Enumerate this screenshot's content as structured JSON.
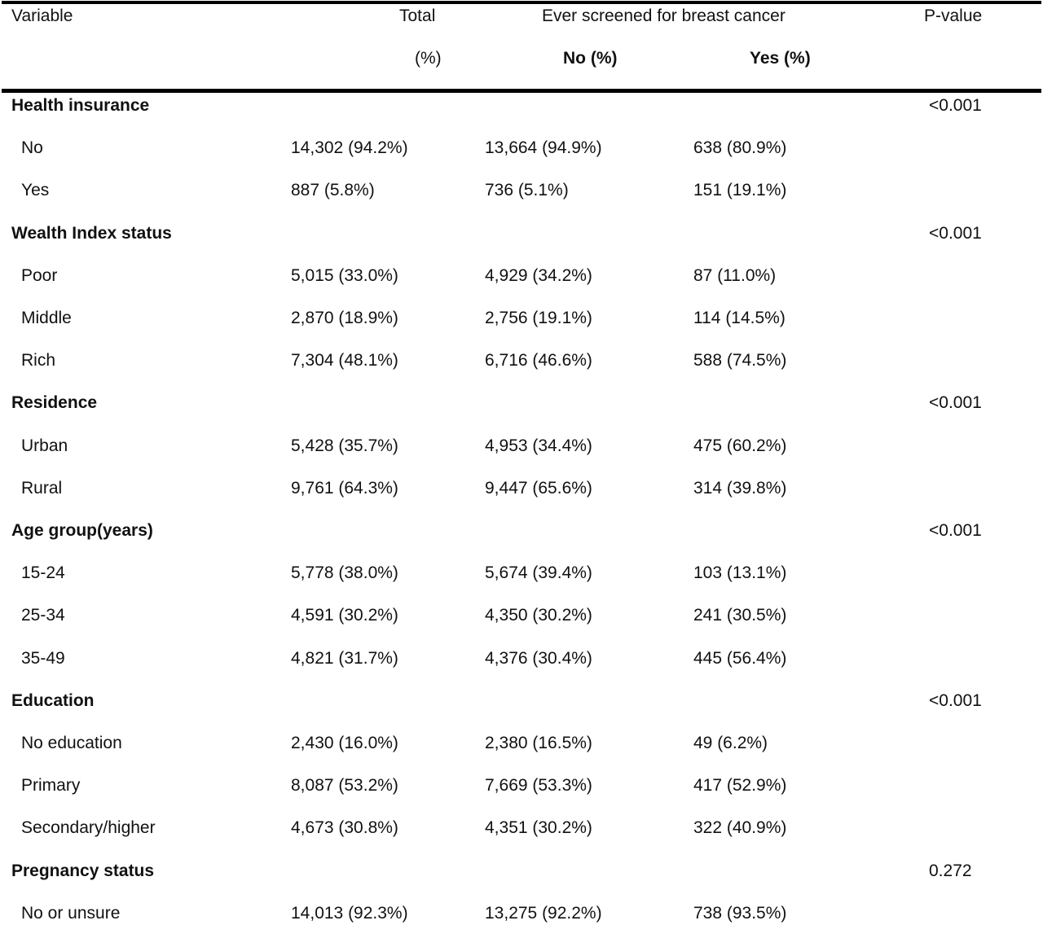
{
  "header": {
    "variable": "Variable",
    "total": "Total",
    "total_unit": "(%)",
    "group": "Ever screened for breast cancer",
    "no": "No (%)",
    "yes": "Yes (%)",
    "pvalue": "P-value"
  },
  "rows": [
    {
      "type": "section",
      "label": "Health insurance",
      "p": "<0.001"
    },
    {
      "type": "item",
      "label": "No",
      "total": "14,302 (94.2%)",
      "no": "13,664 (94.9%)",
      "yes": "638 (80.9%)"
    },
    {
      "type": "item",
      "label": "Yes",
      "total": "887 (5.8%)",
      "no": "736 (5.1%)",
      "yes": "151 (19.1%)"
    },
    {
      "type": "section",
      "label": "Wealth Index status",
      "p": "<0.001"
    },
    {
      "type": "item",
      "label": "Poor",
      "total": "5,015 (33.0%)",
      "no": "4,929 (34.2%)",
      "yes": "87 (11.0%)"
    },
    {
      "type": "item",
      "label": "Middle",
      "total": "2,870 (18.9%)",
      "no": "2,756 (19.1%)",
      "yes": "114 (14.5%)"
    },
    {
      "type": "item",
      "label": "Rich",
      "total": "7,304 (48.1%)",
      "no": "6,716 (46.6%)",
      "yes": "588 (74.5%)"
    },
    {
      "type": "section",
      "label": "Residence",
      "p": "<0.001"
    },
    {
      "type": "item",
      "label": "Urban",
      "total": "5,428 (35.7%)",
      "no": "4,953 (34.4%)",
      "yes": "475 (60.2%)"
    },
    {
      "type": "item",
      "label": "Rural",
      "total": "9,761 (64.3%)",
      "no": "9,447 (65.6%)",
      "yes": "314 (39.8%)"
    },
    {
      "type": "section",
      "label": "Age group(years)",
      "p": "<0.001"
    },
    {
      "type": "item",
      "label": "15-24",
      "total": "5,778 (38.0%)",
      "no": "5,674 (39.4%)",
      "yes": "103 (13.1%)"
    },
    {
      "type": "item",
      "label": "25-34",
      "total": "4,591 (30.2%)",
      "no": "4,350 (30.2%)",
      "yes": "241 (30.5%)"
    },
    {
      "type": "item",
      "label": "35-49",
      "total": "4,821 (31.7%)",
      "no": "4,376 (30.4%)",
      "yes": "445 (56.4%)"
    },
    {
      "type": "section",
      "label": "Education",
      "p": "<0.001"
    },
    {
      "type": "item",
      "label": "No education",
      "total": "2,430 (16.0%)",
      "no": "2,380 (16.5%)",
      "yes": "49 (6.2%)"
    },
    {
      "type": "item",
      "label": "Primary",
      "total": "8,087 (53.2%)",
      "no": "7,669 (53.3%)",
      "yes": "417 (52.9%)"
    },
    {
      "type": "item",
      "label": "Secondary/higher",
      "total": "4,673 (30.8%)",
      "no": "4,351 (30.2%)",
      "yes": "322 (40.9%)"
    },
    {
      "type": "section",
      "label": "Pregnancy status",
      "p": "0.272"
    },
    {
      "type": "item",
      "label": "No or unsure",
      "total": "14,013 (92.3%)",
      "no": "13,275 (92.2%)",
      "yes": "738 (93.5%)"
    }
  ]
}
